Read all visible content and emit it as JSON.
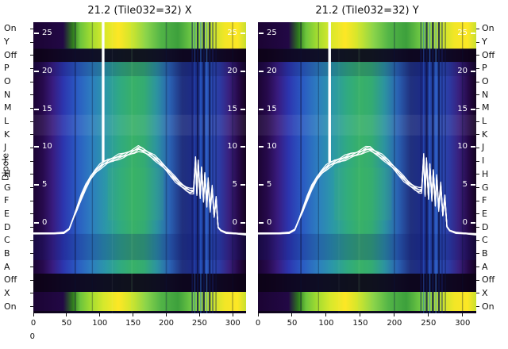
{
  "y_axis": {
    "title": "Dipole",
    "labels": [
      "On",
      "Y",
      "Off",
      "P",
      "O",
      "N",
      "M",
      "L",
      "K",
      "J",
      "I",
      "H",
      "G",
      "F",
      "E",
      "D",
      "C",
      "B",
      "A",
      "Off",
      "X",
      "On"
    ],
    "shown_on": [
      "left",
      "right"
    ]
  },
  "misc": {
    "corner_label": "0"
  },
  "palette": {
    "background": "#ffffff",
    "text": "#111111",
    "curve": "#ffffff",
    "heat_low": "#1b0433",
    "heat_blue": "#2a58c2",
    "heat_teal": "#2b97a8",
    "heat_green": "#38b068",
    "heat_yellow": "#fde725"
  },
  "chart_data": [
    {
      "type": "heatmap",
      "title": "21.2 (Tile032=32) X",
      "x_range": [
        0,
        320
      ],
      "x_ticks": [
        0,
        50,
        100,
        150,
        200,
        250,
        300
      ],
      "power_axis": {
        "ticks": [
          25,
          20,
          15,
          10,
          5,
          0
        ],
        "side": "both-inner"
      },
      "rows_from": "y_axis.labels",
      "spike_x": 105,
      "line": {
        "points": [
          [
            0,
            -1.4
          ],
          [
            30,
            -1.4
          ],
          [
            46,
            -1.3
          ],
          [
            54,
            -0.8
          ],
          [
            60,
            0.6
          ],
          [
            66,
            2.0
          ],
          [
            72,
            3.4
          ],
          [
            79,
            4.8
          ],
          [
            86,
            5.9
          ],
          [
            93,
            6.8
          ],
          [
            100,
            7.4
          ],
          [
            106,
            7.8
          ],
          [
            112,
            8.1
          ],
          [
            120,
            8.4
          ],
          [
            128,
            8.7
          ],
          [
            136,
            8.9
          ],
          [
            144,
            9.2
          ],
          [
            152,
            9.5
          ],
          [
            158,
            9.8
          ],
          [
            164,
            9.6
          ],
          [
            170,
            9.3
          ],
          [
            176,
            9.0
          ],
          [
            182,
            8.6
          ],
          [
            190,
            8.0
          ],
          [
            198,
            7.3
          ],
          [
            206,
            6.5
          ],
          [
            214,
            5.7
          ],
          [
            222,
            5.0
          ],
          [
            230,
            4.5
          ],
          [
            236,
            4.2
          ],
          [
            241,
            4.2
          ],
          [
            244,
            8.4
          ],
          [
            246,
            3.9
          ],
          [
            248,
            8.0
          ],
          [
            251,
            3.4
          ],
          [
            253,
            7.2
          ],
          [
            256,
            3.0
          ],
          [
            258,
            6.4
          ],
          [
            261,
            2.4
          ],
          [
            263,
            5.6
          ],
          [
            266,
            1.8
          ],
          [
            269,
            4.6
          ],
          [
            272,
            0.8
          ],
          [
            275,
            3.2
          ],
          [
            278,
            -0.6
          ],
          [
            282,
            -1.0
          ],
          [
            290,
            -1.3
          ],
          [
            305,
            -1.4
          ],
          [
            320,
            -1.5
          ]
        ]
      }
    },
    {
      "type": "heatmap",
      "title": "21.2 (Tile032=32) Y",
      "x_range": [
        0,
        320
      ],
      "x_ticks": [
        0,
        50,
        100,
        150,
        200,
        250,
        300
      ],
      "power_axis": {
        "ticks": [
          25,
          20,
          15,
          10,
          5,
          0
        ],
        "side": "both-inner"
      },
      "rows_from": "y_axis.labels",
      "spike_x": 105,
      "line": {
        "points": [
          [
            0,
            -1.4
          ],
          [
            30,
            -1.4
          ],
          [
            46,
            -1.3
          ],
          [
            54,
            -0.9
          ],
          [
            60,
            0.4
          ],
          [
            66,
            1.8
          ],
          [
            72,
            3.2
          ],
          [
            79,
            4.7
          ],
          [
            86,
            5.8
          ],
          [
            93,
            6.7
          ],
          [
            100,
            7.3
          ],
          [
            106,
            7.7
          ],
          [
            112,
            8.0
          ],
          [
            120,
            8.3
          ],
          [
            128,
            8.6
          ],
          [
            136,
            8.9
          ],
          [
            144,
            9.1
          ],
          [
            152,
            9.4
          ],
          [
            158,
            9.7
          ],
          [
            164,
            9.8
          ],
          [
            170,
            9.4
          ],
          [
            176,
            9.1
          ],
          [
            182,
            8.7
          ],
          [
            190,
            8.1
          ],
          [
            198,
            7.4
          ],
          [
            206,
            6.6
          ],
          [
            214,
            5.8
          ],
          [
            222,
            5.1
          ],
          [
            230,
            4.6
          ],
          [
            236,
            4.3
          ],
          [
            240,
            4.3
          ],
          [
            243,
            8.8
          ],
          [
            245,
            3.8
          ],
          [
            247,
            8.3
          ],
          [
            250,
            3.3
          ],
          [
            252,
            7.6
          ],
          [
            255,
            3.1
          ],
          [
            257,
            6.8
          ],
          [
            260,
            2.5
          ],
          [
            262,
            6.0
          ],
          [
            265,
            1.9
          ],
          [
            268,
            5.0
          ],
          [
            271,
            1.0
          ],
          [
            274,
            3.4
          ],
          [
            277,
            -0.5
          ],
          [
            281,
            -1.0
          ],
          [
            290,
            -1.3
          ],
          [
            305,
            -1.4
          ],
          [
            320,
            -1.5
          ]
        ]
      }
    }
  ]
}
